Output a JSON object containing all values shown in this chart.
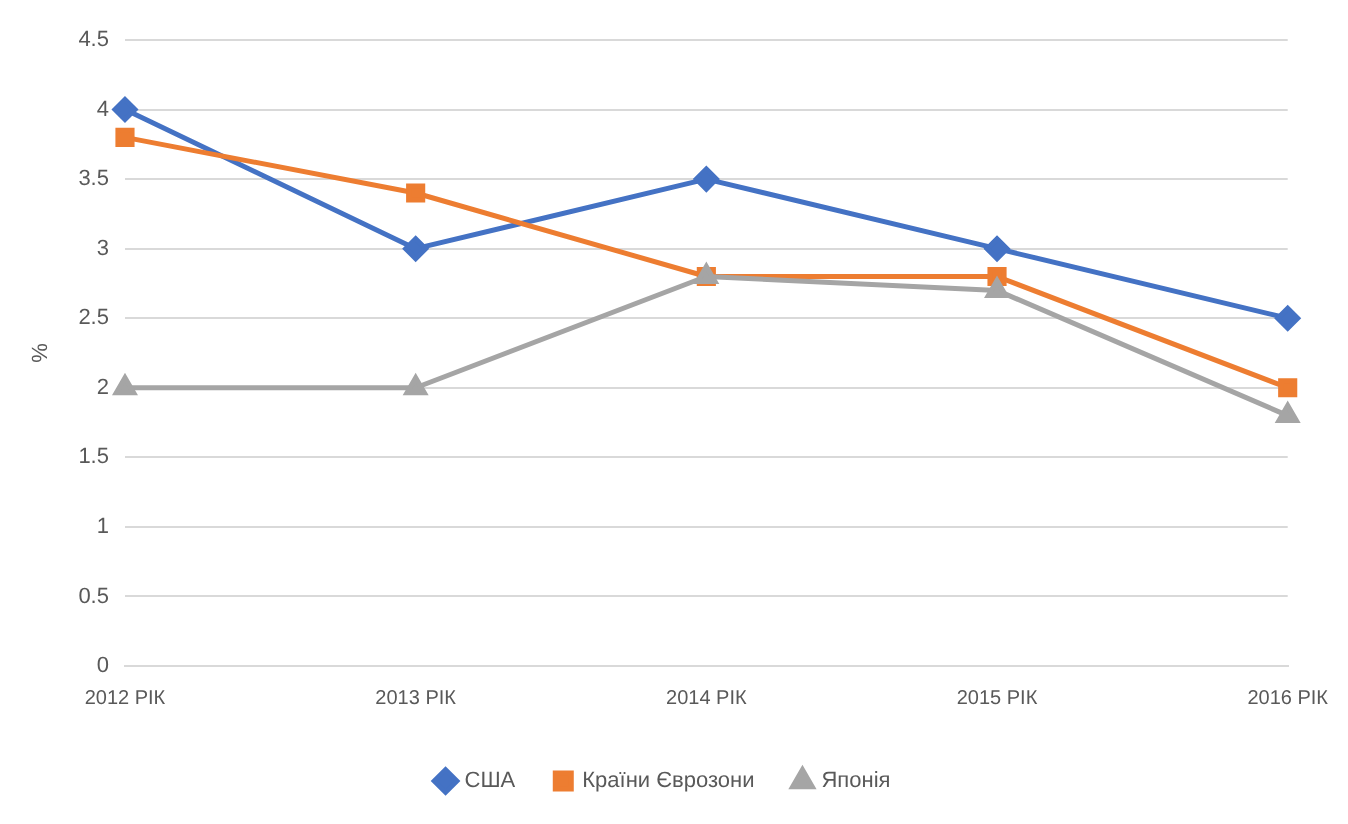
{
  "chart_data": {
    "type": "line",
    "ylabel": "%",
    "categories": [
      "2012 РІК",
      "2013 РІК",
      "2014 РІК",
      "2015 РІК",
      "2016 РІК"
    ],
    "series": [
      {
        "name": "США",
        "color": "#4472c4",
        "marker": "diamond",
        "values": [
          4,
          3,
          3.5,
          3,
          2.5
        ]
      },
      {
        "name": "Країни Єврозони",
        "color": "#ed7d31",
        "marker": "square",
        "values": [
          3.8,
          3.4,
          2.8,
          2.8,
          2.0
        ]
      },
      {
        "name": "Японія",
        "color": "#a5a5a5",
        "marker": "triangle",
        "values": [
          2,
          2,
          2.8,
          2.7,
          1.8
        ]
      }
    ],
    "ylim": [
      0,
      4.5
    ],
    "yticks": [
      0,
      0.5,
      1,
      1.5,
      2,
      2.5,
      3,
      3.5,
      4,
      4.5
    ],
    "grid": "y",
    "legend": "bottom",
    "line_style": "solid"
  }
}
